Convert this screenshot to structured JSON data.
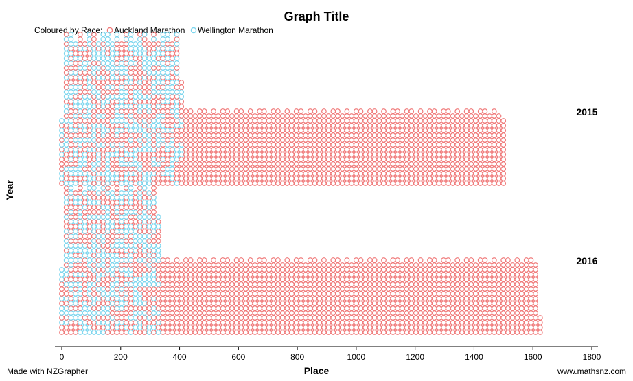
{
  "chart_data": {
    "type": "scatter",
    "subtype": "stacked-dot-plot",
    "title": "Graph Title",
    "xlabel": "Place",
    "ylabel": "Year",
    "xlim": [
      0,
      1800
    ],
    "x_ticks": [
      0,
      200,
      400,
      600,
      800,
      1000,
      1200,
      1400,
      1600,
      1800
    ],
    "grid": false,
    "legend": {
      "title": "Coloured by Race:",
      "placement": "top-left",
      "entries": [
        {
          "label": "Auckland Marathon",
          "color": "#f07a7a"
        },
        {
          "label": "Wellington Marathon",
          "color": "#7dd6ee"
        }
      ]
    },
    "panels": [
      {
        "label": "2015",
        "series": [
          {
            "name": "Auckland Marathon",
            "color": "#f07a7a",
            "x_range": [
              1,
              1505
            ],
            "count": 1505
          },
          {
            "name": "Wellington Marathon",
            "color": "#7dd6ee",
            "x_range": [
              1,
              405
            ],
            "count": 405
          }
        ]
      },
      {
        "label": "2016",
        "series": [
          {
            "name": "Auckland Marathon",
            "color": "#f07a7a",
            "x_range": [
              1,
              1620
            ],
            "count": 1620
          },
          {
            "name": "Wellington Marathon",
            "color": "#7dd6ee",
            "x_range": [
              1,
              330
            ],
            "count": 330
          }
        ]
      }
    ]
  },
  "footer": {
    "left": "Made with NZGrapher",
    "right": "www.mathsnz.com"
  }
}
